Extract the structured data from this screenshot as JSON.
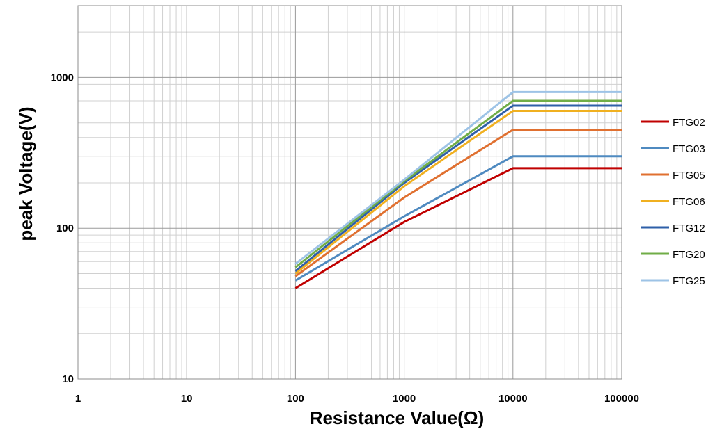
{
  "chart_data": {
    "type": "line",
    "xlabel": "Resistance Value(Ω)",
    "ylabel": "peak Voltage(V)",
    "x_scale": "log",
    "y_scale": "log",
    "xlim": [
      1,
      100000
    ],
    "ylim": [
      10,
      3000
    ],
    "x_ticks": [
      "1",
      "10",
      "100",
      "1000",
      "10000",
      "100000"
    ],
    "y_ticks": [
      "10",
      "100",
      "1000"
    ],
    "grid": true,
    "legend_position": "right",
    "series": [
      {
        "name": "FTG02",
        "color": "#c00000",
        "points": [
          [
            100,
            40
          ],
          [
            1000,
            110
          ],
          [
            10000,
            250
          ],
          [
            100000,
            250
          ]
        ]
      },
      {
        "name": "FTG03",
        "color": "#4f8ac0",
        "points": [
          [
            100,
            45
          ],
          [
            1000,
            120
          ],
          [
            10000,
            300
          ],
          [
            100000,
            300
          ]
        ]
      },
      {
        "name": "FTG05",
        "color": "#e07030",
        "points": [
          [
            100,
            48
          ],
          [
            1000,
            160
          ],
          [
            10000,
            450
          ],
          [
            100000,
            450
          ]
        ]
      },
      {
        "name": "FTG06",
        "color": "#f0b020",
        "points": [
          [
            100,
            50
          ],
          [
            1000,
            190
          ],
          [
            10000,
            600
          ],
          [
            100000,
            600
          ]
        ]
      },
      {
        "name": "FTG12",
        "color": "#2e5fa8",
        "points": [
          [
            100,
            52
          ],
          [
            1000,
            200
          ],
          [
            10000,
            650
          ],
          [
            100000,
            650
          ]
        ]
      },
      {
        "name": "FTG20",
        "color": "#70ad47",
        "points": [
          [
            100,
            55
          ],
          [
            1000,
            205
          ],
          [
            10000,
            700
          ],
          [
            100000,
            700
          ]
        ]
      },
      {
        "name": "FTG25",
        "color": "#9dc3e6",
        "points": [
          [
            100,
            58
          ],
          [
            1000,
            210
          ],
          [
            10000,
            800
          ],
          [
            100000,
            800
          ]
        ]
      }
    ]
  }
}
